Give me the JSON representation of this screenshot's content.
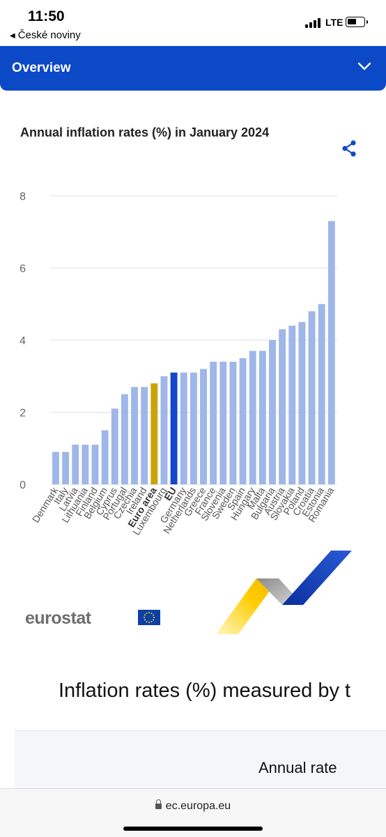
{
  "status_bar": {
    "time": "11:50",
    "back_app": "České noviny",
    "network": "LTE"
  },
  "header": {
    "title": "Overview"
  },
  "chart_data": {
    "type": "bar",
    "title": "Annual inflation rates (%) in January 2024",
    "categories": [
      "Denmark",
      "Italy",
      "Latvia",
      "Lithuania",
      "Finland",
      "Belgium",
      "Cyprus",
      "Portugal",
      "Czechia",
      "Ireland",
      "Euro area",
      "Luxembourg",
      "EU",
      "Germany",
      "Netherlands",
      "Greece",
      "France",
      "Slovenia",
      "Sweden",
      "Spain",
      "Hungary",
      "Malta",
      "Bulgaria",
      "Austria",
      "Slovakia",
      "Poland",
      "Croatia",
      "Estonia",
      "Romania"
    ],
    "values": [
      0.9,
      0.9,
      1.1,
      1.1,
      1.1,
      1.5,
      2.1,
      2.5,
      2.7,
      2.7,
      2.8,
      3.0,
      3.1,
      3.1,
      3.1,
      3.2,
      3.4,
      3.4,
      3.4,
      3.5,
      3.7,
      3.7,
      4.0,
      4.3,
      4.4,
      4.5,
      4.8,
      5.0,
      7.3
    ],
    "highlight": {
      "Euro area": "#c9a30a",
      "EU": "#1447c9"
    },
    "bar_color": "#9fb6e8",
    "bold_labels": [
      "Euro area",
      "EU"
    ],
    "ylim": [
      0,
      8
    ],
    "yticks": [
      "0",
      "2",
      "4",
      "6",
      "8"
    ],
    "grid": true,
    "xlabel": "",
    "ylabel": ""
  },
  "logo": {
    "text": "eurostat"
  },
  "section": {
    "title": "Inflation rates (%) measured by t"
  },
  "table": {
    "header": "Annual rate"
  },
  "browser": {
    "url": "ec.europa.eu"
  },
  "icons": {
    "header_toggle": "chevron-down-icon",
    "share": "share-icon",
    "lock": "lock-icon",
    "flag": "eu-flag-icon"
  }
}
